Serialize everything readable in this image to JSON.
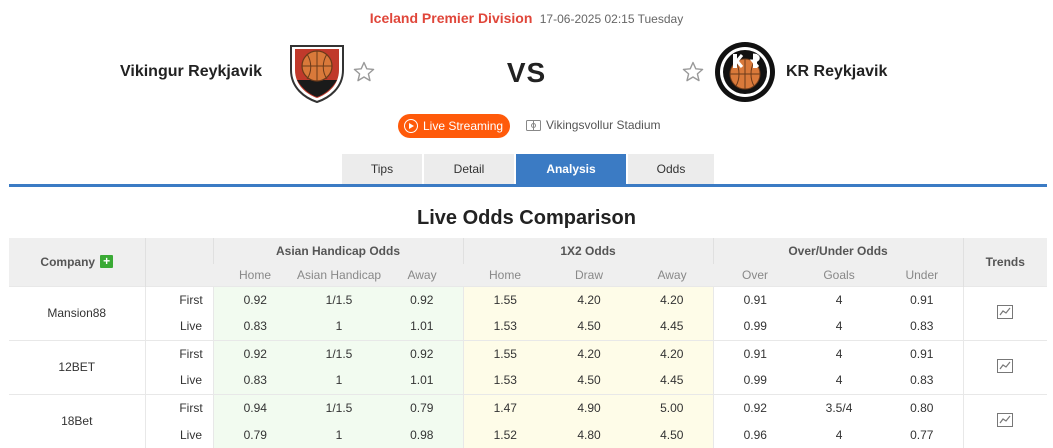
{
  "header": {
    "league": "Iceland Premier Division",
    "datetime": "17-06-2025 02:15 Tuesday"
  },
  "match": {
    "home_team": "Vikingur Reykjavik",
    "away_team": "KR Reykjavik",
    "vs_label": "VS",
    "live_label": "Live Streaming",
    "stadium": "Vikingsvollur Stadium"
  },
  "tabs": [
    {
      "label": "Tips",
      "active": false
    },
    {
      "label": "Detail",
      "active": false
    },
    {
      "label": "Analysis",
      "active": true
    },
    {
      "label": "Odds",
      "active": false
    }
  ],
  "section_title": "Live Odds Comparison",
  "table": {
    "company_header": "Company",
    "group_headers": [
      "Asian Handicap Odds",
      "1X2 Odds",
      "Over/Under Odds"
    ],
    "trends_header": "Trends",
    "sub_headers": [
      "Home",
      "Asian Handicap",
      "Away",
      "Home",
      "Draw",
      "Away",
      "Over",
      "Goals",
      "Under"
    ],
    "companies": [
      {
        "name": "Mansion88",
        "rows": [
          {
            "type": "First",
            "values": [
              "0.92",
              "1/1.5",
              "0.92",
              "1.55",
              "4.20",
              "4.20",
              "0.91",
              "4",
              "0.91"
            ]
          },
          {
            "type": "Live",
            "values": [
              "0.83",
              "1",
              "1.01",
              "1.53",
              "4.50",
              "4.45",
              "0.99",
              "4",
              "0.83"
            ]
          }
        ]
      },
      {
        "name": "12BET",
        "rows": [
          {
            "type": "First",
            "values": [
              "0.92",
              "1/1.5",
              "0.92",
              "1.55",
              "4.20",
              "4.20",
              "0.91",
              "4",
              "0.91"
            ]
          },
          {
            "type": "Live",
            "values": [
              "0.83",
              "1",
              "1.01",
              "1.53",
              "4.50",
              "4.45",
              "0.99",
              "4",
              "0.83"
            ]
          }
        ]
      },
      {
        "name": "18Bet",
        "rows": [
          {
            "type": "First",
            "values": [
              "0.94",
              "1/1.5",
              "0.79",
              "1.47",
              "4.90",
              "5.00",
              "0.92",
              "3.5/4",
              "0.80"
            ]
          },
          {
            "type": "Live",
            "values": [
              "0.79",
              "1",
              "0.98",
              "1.52",
              "4.80",
              "4.50",
              "0.96",
              "4",
              "0.77"
            ]
          }
        ]
      }
    ]
  },
  "icons": {
    "home_logo": "vikingur-crest-icon",
    "away_logo": "kr-crest-icon",
    "favorite": "star-outline-icon",
    "live": "play-circle-icon",
    "stadium": "stadium-icon",
    "add_company": "plus-icon",
    "trend": "trend-chart-icon"
  },
  "colors": {
    "league": "#e0463a",
    "live_button": "#ff5a0a",
    "tab_active": "#3b7bc4",
    "plus": "#3aaa35",
    "ah_bg": "#f2fbf0",
    "x12_bg": "#fefce8"
  }
}
